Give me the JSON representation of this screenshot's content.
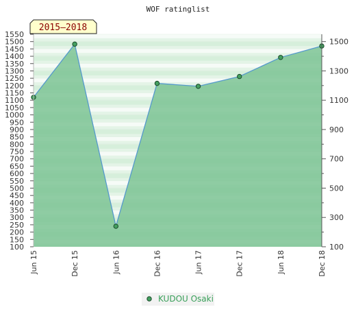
{
  "chart_data": {
    "type": "area",
    "title": "WOF ratinglist",
    "badge": "2015–2018",
    "categories": [
      "Jun 15",
      "Dec 15",
      "Jun 16",
      "Dec 16",
      "Jun 17",
      "Dec 17",
      "Jun 18",
      "Dec 18"
    ],
    "series": [
      {
        "name": "KUDOU Osaki",
        "values": [
          1120,
          1483,
          240,
          1215,
          1195,
          1262,
          1392,
          1470
        ]
      }
    ],
    "left_axis": {
      "ylim": [
        100,
        1550
      ],
      "ticks": [
        "100",
        "150",
        "200",
        "250",
        "300",
        "350",
        "400",
        "450",
        "500",
        "550",
        "600",
        "650",
        "700",
        "750",
        "800",
        "850",
        "900",
        "950",
        "1000",
        "1050",
        "1100",
        "1150",
        "1200",
        "1250",
        "1300",
        "1350",
        "1400",
        "1450",
        "1500",
        "1550"
      ]
    },
    "right_axis": {
      "ylim": [
        100,
        1550
      ],
      "ticks": [
        "100",
        "300",
        "500",
        "700",
        "900",
        "1100",
        "1300",
        "1500"
      ]
    },
    "grid": true,
    "legend_position": "bottom-center",
    "colors": {
      "line": "#5599cc",
      "fill": "#7cc394",
      "marker_fill": "#44a060",
      "marker_stroke": "#1a4a2a",
      "badge_fill": "#ffffcc",
      "badge_text": "#8b0000",
      "legend_text": "#3aa05a"
    }
  }
}
